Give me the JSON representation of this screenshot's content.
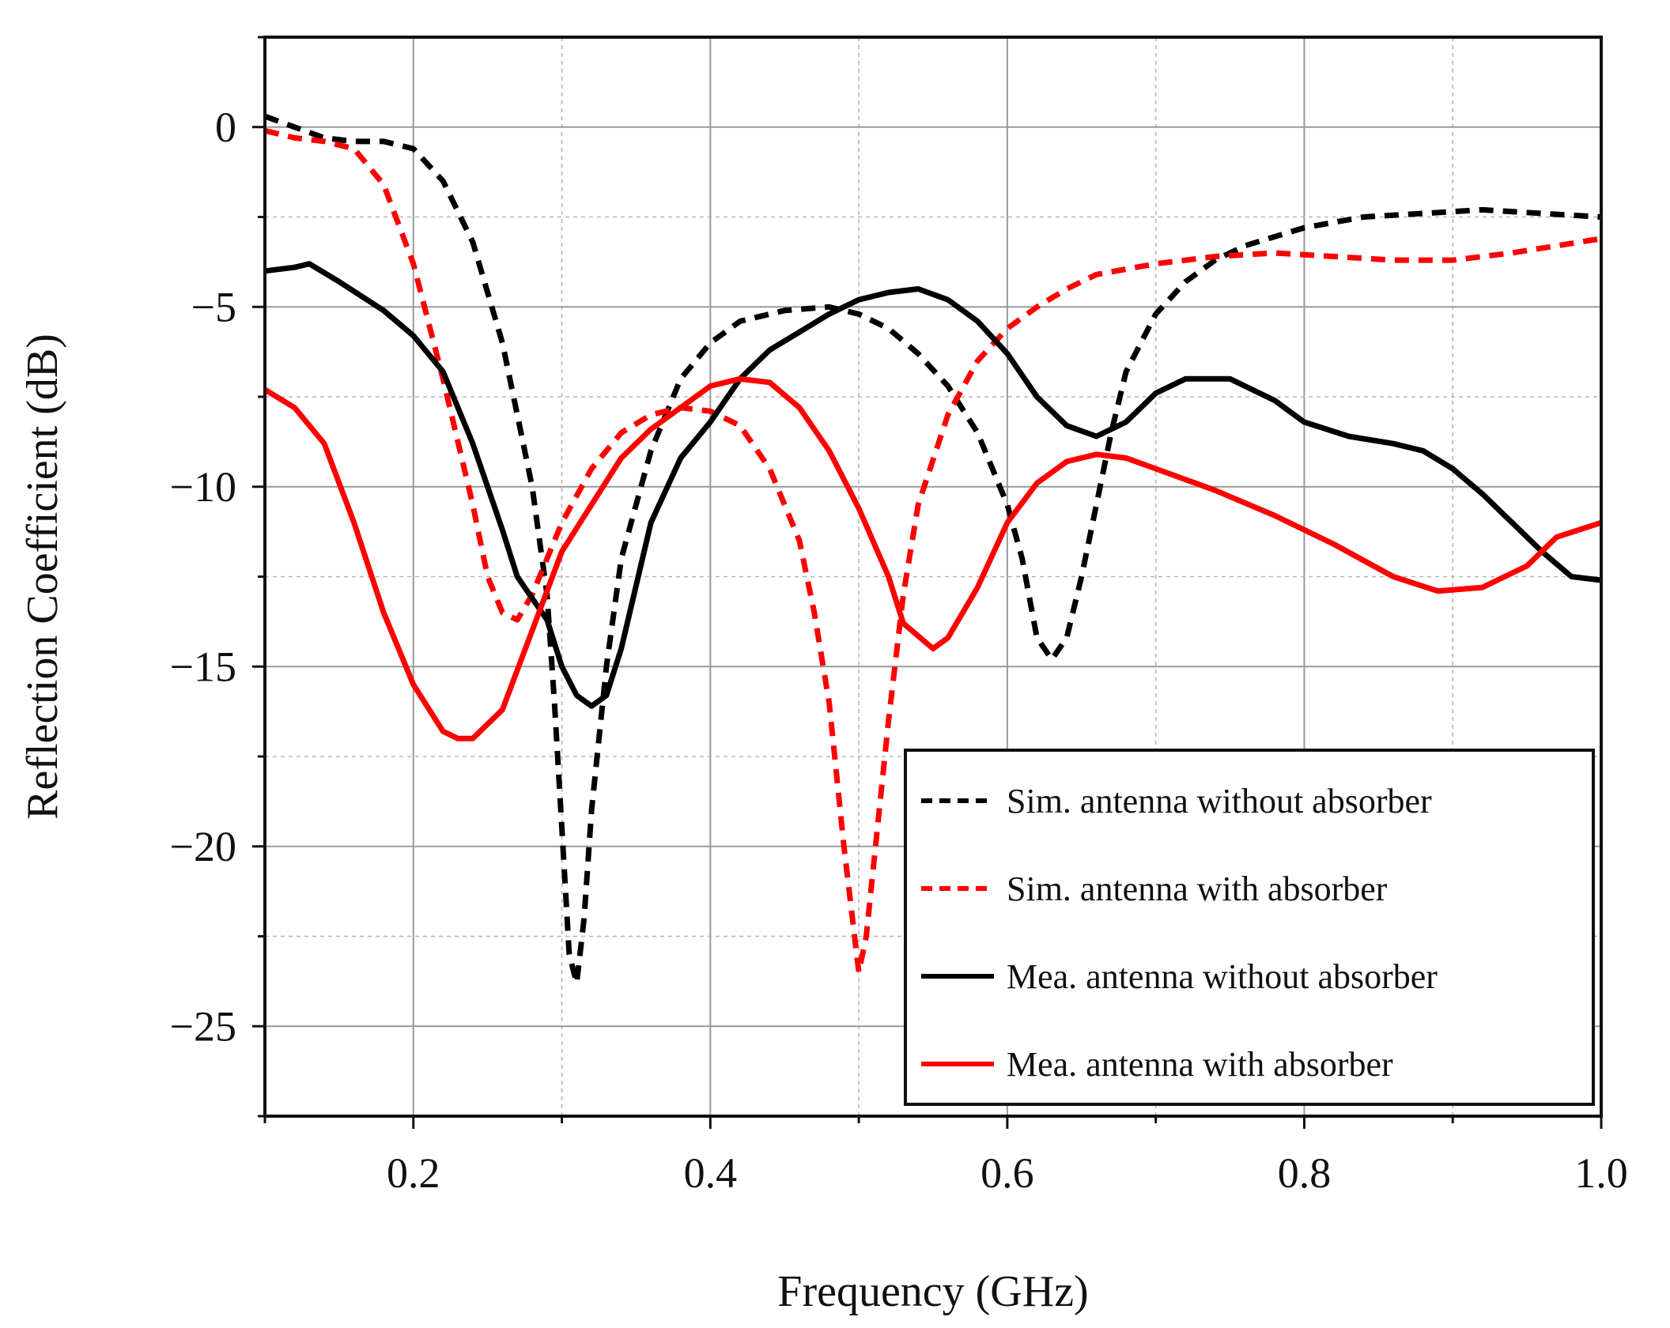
{
  "chart_data": {
    "type": "line",
    "title": "",
    "xlabel": "Frequency (GHz)",
    "ylabel": "Reflection Coefficient (dB)",
    "xlim": [
      0.1,
      1.0
    ],
    "ylim": [
      -27.5,
      2.5
    ],
    "x_ticks": [
      0.2,
      0.4,
      0.6,
      0.8,
      1.0
    ],
    "x_tick_labels": [
      "0.2",
      "0.4",
      "0.6",
      "0.8",
      "1.0"
    ],
    "y_ticks": [
      0,
      -5,
      -10,
      -15,
      -20,
      -25
    ],
    "y_tick_labels": [
      "0",
      "−5",
      "−10",
      "−15",
      "−20",
      "−25"
    ],
    "x_minor_ticks": [
      0.1,
      0.3,
      0.5,
      0.7,
      0.9
    ],
    "y_minor_ticks": [
      2.5,
      -2.5,
      -7.5,
      -12.5,
      -17.5,
      -22.5,
      -27.5
    ],
    "grid": true,
    "legend_position": "bottom-right",
    "series": [
      {
        "name": "Sim. antenna without absorber",
        "color": "#000000",
        "dash": "dashed",
        "points": [
          [
            0.1,
            0.3
          ],
          [
            0.12,
            0.0
          ],
          [
            0.14,
            -0.3
          ],
          [
            0.16,
            -0.4
          ],
          [
            0.18,
            -0.4
          ],
          [
            0.2,
            -0.6
          ],
          [
            0.22,
            -1.5
          ],
          [
            0.24,
            -3.2
          ],
          [
            0.26,
            -6.0
          ],
          [
            0.28,
            -10.0
          ],
          [
            0.29,
            -13.0
          ],
          [
            0.295,
            -16.0
          ],
          [
            0.3,
            -19.5
          ],
          [
            0.305,
            -23.0
          ],
          [
            0.31,
            -23.8
          ],
          [
            0.315,
            -22.0
          ],
          [
            0.32,
            -19.0
          ],
          [
            0.33,
            -15.0
          ],
          [
            0.34,
            -12.0
          ],
          [
            0.36,
            -9.0
          ],
          [
            0.38,
            -7.0
          ],
          [
            0.4,
            -6.0
          ],
          [
            0.42,
            -5.4
          ],
          [
            0.45,
            -5.1
          ],
          [
            0.48,
            -5.0
          ],
          [
            0.5,
            -5.2
          ],
          [
            0.52,
            -5.6
          ],
          [
            0.54,
            -6.3
          ],
          [
            0.56,
            -7.2
          ],
          [
            0.58,
            -8.5
          ],
          [
            0.6,
            -10.5
          ],
          [
            0.61,
            -12.0
          ],
          [
            0.62,
            -14.2
          ],
          [
            0.63,
            -14.8
          ],
          [
            0.64,
            -14.2
          ],
          [
            0.65,
            -12.5
          ],
          [
            0.66,
            -10.5
          ],
          [
            0.67,
            -8.5
          ],
          [
            0.68,
            -6.8
          ],
          [
            0.7,
            -5.2
          ],
          [
            0.72,
            -4.3
          ],
          [
            0.74,
            -3.7
          ],
          [
            0.76,
            -3.3
          ],
          [
            0.8,
            -2.8
          ],
          [
            0.84,
            -2.5
          ],
          [
            0.88,
            -2.4
          ],
          [
            0.92,
            -2.3
          ],
          [
            0.96,
            -2.4
          ],
          [
            1.0,
            -2.5
          ]
        ]
      },
      {
        "name": "Sim. antenna with absorber",
        "color": "#ff0000",
        "dash": "dashed",
        "points": [
          [
            0.1,
            -0.1
          ],
          [
            0.12,
            -0.3
          ],
          [
            0.14,
            -0.4
          ],
          [
            0.16,
            -0.6
          ],
          [
            0.18,
            -1.6
          ],
          [
            0.2,
            -3.8
          ],
          [
            0.22,
            -7.0
          ],
          [
            0.24,
            -10.5
          ],
          [
            0.25,
            -12.5
          ],
          [
            0.26,
            -13.5
          ],
          [
            0.27,
            -13.7
          ],
          [
            0.28,
            -13.0
          ],
          [
            0.3,
            -11.0
          ],
          [
            0.32,
            -9.5
          ],
          [
            0.34,
            -8.5
          ],
          [
            0.36,
            -8.0
          ],
          [
            0.38,
            -7.8
          ],
          [
            0.4,
            -7.9
          ],
          [
            0.42,
            -8.3
          ],
          [
            0.44,
            -9.5
          ],
          [
            0.46,
            -11.5
          ],
          [
            0.47,
            -13.5
          ],
          [
            0.48,
            -16.0
          ],
          [
            0.49,
            -20.0
          ],
          [
            0.5,
            -23.5
          ],
          [
            0.505,
            -22.5
          ],
          [
            0.51,
            -20.5
          ],
          [
            0.52,
            -16.5
          ],
          [
            0.53,
            -13.0
          ],
          [
            0.54,
            -10.5
          ],
          [
            0.56,
            -8.0
          ],
          [
            0.58,
            -6.5
          ],
          [
            0.6,
            -5.6
          ],
          [
            0.62,
            -5.0
          ],
          [
            0.64,
            -4.5
          ],
          [
            0.66,
            -4.1
          ],
          [
            0.7,
            -3.8
          ],
          [
            0.74,
            -3.6
          ],
          [
            0.78,
            -3.5
          ],
          [
            0.82,
            -3.6
          ],
          [
            0.86,
            -3.7
          ],
          [
            0.9,
            -3.7
          ],
          [
            0.94,
            -3.5
          ],
          [
            0.97,
            -3.3
          ],
          [
            1.0,
            -3.1
          ]
        ]
      },
      {
        "name": "Mea. antenna without absorber",
        "color": "#000000",
        "dash": "solid",
        "points": [
          [
            0.1,
            -4.0
          ],
          [
            0.12,
            -3.9
          ],
          [
            0.13,
            -3.8
          ],
          [
            0.15,
            -4.3
          ],
          [
            0.18,
            -5.1
          ],
          [
            0.2,
            -5.8
          ],
          [
            0.22,
            -6.8
          ],
          [
            0.24,
            -8.8
          ],
          [
            0.26,
            -11.2
          ],
          [
            0.27,
            -12.5
          ],
          [
            0.28,
            -13.1
          ],
          [
            0.29,
            -13.7
          ],
          [
            0.3,
            -15.0
          ],
          [
            0.31,
            -15.8
          ],
          [
            0.32,
            -16.1
          ],
          [
            0.33,
            -15.8
          ],
          [
            0.34,
            -14.5
          ],
          [
            0.36,
            -11.0
          ],
          [
            0.38,
            -9.2
          ],
          [
            0.4,
            -8.2
          ],
          [
            0.42,
            -7.0
          ],
          [
            0.44,
            -6.2
          ],
          [
            0.46,
            -5.7
          ],
          [
            0.48,
            -5.2
          ],
          [
            0.5,
            -4.8
          ],
          [
            0.52,
            -4.6
          ],
          [
            0.54,
            -4.5
          ],
          [
            0.56,
            -4.8
          ],
          [
            0.58,
            -5.4
          ],
          [
            0.6,
            -6.3
          ],
          [
            0.62,
            -7.5
          ],
          [
            0.64,
            -8.3
          ],
          [
            0.66,
            -8.6
          ],
          [
            0.68,
            -8.2
          ],
          [
            0.7,
            -7.4
          ],
          [
            0.72,
            -7.0
          ],
          [
            0.75,
            -7.0
          ],
          [
            0.78,
            -7.6
          ],
          [
            0.8,
            -8.2
          ],
          [
            0.83,
            -8.6
          ],
          [
            0.86,
            -8.8
          ],
          [
            0.88,
            -9.0
          ],
          [
            0.9,
            -9.5
          ],
          [
            0.92,
            -10.2
          ],
          [
            0.94,
            -11.0
          ],
          [
            0.96,
            -11.8
          ],
          [
            0.98,
            -12.5
          ],
          [
            1.0,
            -12.6
          ]
        ]
      },
      {
        "name": "Mea. antenna with absorber",
        "color": "#ff0000",
        "dash": "solid",
        "points": [
          [
            0.1,
            -7.3
          ],
          [
            0.12,
            -7.8
          ],
          [
            0.14,
            -8.8
          ],
          [
            0.16,
            -11.0
          ],
          [
            0.18,
            -13.5
          ],
          [
            0.2,
            -15.5
          ],
          [
            0.22,
            -16.8
          ],
          [
            0.23,
            -17.0
          ],
          [
            0.24,
            -17.0
          ],
          [
            0.26,
            -16.2
          ],
          [
            0.28,
            -14.0
          ],
          [
            0.3,
            -11.8
          ],
          [
            0.32,
            -10.5
          ],
          [
            0.34,
            -9.2
          ],
          [
            0.36,
            -8.4
          ],
          [
            0.38,
            -7.8
          ],
          [
            0.4,
            -7.2
          ],
          [
            0.42,
            -7.0
          ],
          [
            0.44,
            -7.1
          ],
          [
            0.46,
            -7.8
          ],
          [
            0.48,
            -9.0
          ],
          [
            0.5,
            -10.6
          ],
          [
            0.52,
            -12.5
          ],
          [
            0.53,
            -13.8
          ],
          [
            0.55,
            -14.5
          ],
          [
            0.56,
            -14.2
          ],
          [
            0.58,
            -12.8
          ],
          [
            0.6,
            -11.0
          ],
          [
            0.62,
            -9.9
          ],
          [
            0.64,
            -9.3
          ],
          [
            0.66,
            -9.1
          ],
          [
            0.68,
            -9.2
          ],
          [
            0.7,
            -9.5
          ],
          [
            0.74,
            -10.1
          ],
          [
            0.78,
            -10.8
          ],
          [
            0.82,
            -11.6
          ],
          [
            0.86,
            -12.5
          ],
          [
            0.89,
            -12.9
          ],
          [
            0.92,
            -12.8
          ],
          [
            0.95,
            -12.2
          ],
          [
            0.97,
            -11.4
          ],
          [
            1.0,
            -11.0
          ]
        ]
      }
    ]
  }
}
